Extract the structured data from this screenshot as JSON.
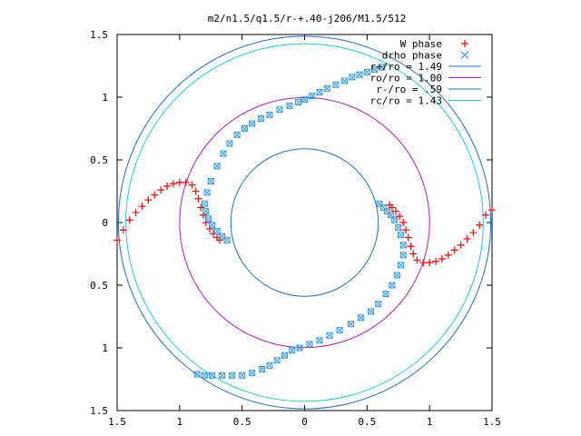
{
  "chart_data": {
    "type": "scatter",
    "title": "m2/n1.5/q1.5/r-+.40-j206/M1.5/512",
    "xlim": [
      -1.5,
      1.5
    ],
    "ylim": [
      -1.5,
      1.5
    ],
    "x_tick_values": [
      -1.5,
      -1,
      -0.5,
      0,
      0.5,
      1,
      1.5
    ],
    "x_tick_labels": [
      "1.5",
      "1",
      "0.5",
      "0",
      "0.5",
      "1",
      "1.5"
    ],
    "y_tick_values": [
      1.5,
      1,
      0.5,
      0,
      -0.5,
      -1,
      -1.5
    ],
    "y_tick_labels": [
      "1.5",
      "1",
      "0.5",
      "0",
      "0.5",
      "1",
      "1.5"
    ],
    "grid": false,
    "legend_position": "top-right",
    "series": [
      {
        "name": "W phase",
        "marker": "plus",
        "color": "#ff0000",
        "points": [
          [
            -1.5,
            -0.14
          ],
          [
            -1.45,
            -0.06
          ],
          [
            -1.4,
            0.02
          ],
          [
            -1.35,
            0.08
          ],
          [
            -1.3,
            0.13
          ],
          [
            -1.25,
            0.18
          ],
          [
            -1.2,
            0.22
          ],
          [
            -1.15,
            0.26
          ],
          [
            -1.1,
            0.29
          ],
          [
            -1.05,
            0.31
          ],
          [
            -1.0,
            0.32
          ],
          [
            -0.95,
            0.32
          ],
          [
            -0.9,
            0.3
          ],
          [
            -0.87,
            0.25
          ],
          [
            -0.85,
            0.19
          ],
          [
            -0.83,
            0.12
          ],
          [
            -0.81,
            0.06
          ],
          [
            -0.79,
            0.0
          ],
          [
            -0.76,
            -0.05
          ],
          [
            -0.73,
            -0.09
          ],
          [
            -0.7,
            -0.12
          ],
          [
            -0.68,
            -0.14
          ],
          [
            0.68,
            0.14
          ],
          [
            0.7,
            0.12
          ],
          [
            0.73,
            0.09
          ],
          [
            0.76,
            0.05
          ],
          [
            0.79,
            0.0
          ],
          [
            0.81,
            -0.06
          ],
          [
            0.83,
            -0.12
          ],
          [
            0.85,
            -0.19
          ],
          [
            0.87,
            -0.25
          ],
          [
            0.9,
            -0.3
          ],
          [
            0.95,
            -0.32
          ],
          [
            1.0,
            -0.32
          ],
          [
            1.05,
            -0.31
          ],
          [
            1.1,
            -0.29
          ],
          [
            1.15,
            -0.26
          ],
          [
            1.2,
            -0.22
          ],
          [
            1.25,
            -0.18
          ],
          [
            1.3,
            -0.13
          ],
          [
            1.35,
            -0.08
          ],
          [
            1.4,
            -0.02
          ],
          [
            1.45,
            0.06
          ],
          [
            1.5,
            0.1
          ]
        ]
      },
      {
        "name": "drho phase",
        "marker": "cross-square",
        "color": "#3399ee",
        "points": [
          [
            -0.62,
            -0.14
          ],
          [
            -0.66,
            -0.11
          ],
          [
            -0.7,
            -0.07
          ],
          [
            -0.74,
            -0.02
          ],
          [
            -0.77,
            0.03
          ],
          [
            -0.79,
            0.09
          ],
          [
            -0.8,
            0.15
          ],
          [
            -0.78,
            0.24
          ],
          [
            -0.75,
            0.33
          ],
          [
            -0.7,
            0.45
          ],
          [
            -0.65,
            0.55
          ],
          [
            -0.6,
            0.63
          ],
          [
            -0.54,
            0.7
          ],
          [
            -0.48,
            0.75
          ],
          [
            -0.42,
            0.79
          ],
          [
            -0.35,
            0.83
          ],
          [
            -0.28,
            0.86
          ],
          [
            -0.2,
            0.9
          ],
          [
            -0.12,
            0.93
          ],
          [
            -0.05,
            0.96
          ],
          [
            0.0,
            0.98
          ],
          [
            0.06,
            1.01
          ],
          [
            0.12,
            1.04
          ],
          [
            0.18,
            1.07
          ],
          [
            0.25,
            1.1
          ],
          [
            0.32,
            1.13
          ],
          [
            0.38,
            1.16
          ],
          [
            0.44,
            1.18
          ],
          [
            0.5,
            1.2
          ],
          [
            0.56,
            1.22
          ],
          [
            0.62,
            1.24
          ],
          [
            0.6,
            0.15
          ],
          [
            0.63,
            0.12
          ],
          [
            0.66,
            0.09
          ],
          [
            0.69,
            0.06
          ],
          [
            0.72,
            0.02
          ],
          [
            0.75,
            -0.04
          ],
          [
            0.77,
            -0.1
          ],
          [
            0.79,
            -0.18
          ],
          [
            0.79,
            -0.26
          ],
          [
            0.77,
            -0.34
          ],
          [
            0.74,
            -0.42
          ],
          [
            0.7,
            -0.5
          ],
          [
            0.65,
            -0.57
          ],
          [
            0.59,
            -0.65
          ],
          [
            0.53,
            -0.71
          ],
          [
            0.45,
            -0.76
          ],
          [
            0.37,
            -0.81
          ],
          [
            0.28,
            -0.86
          ],
          [
            0.2,
            -0.9
          ],
          [
            0.12,
            -0.94
          ],
          [
            0.04,
            -0.97
          ],
          [
            -0.04,
            -1.0
          ],
          [
            -0.1,
            -1.02
          ],
          [
            -0.16,
            -1.06
          ],
          [
            -0.22,
            -1.1
          ],
          [
            -0.28,
            -1.14
          ],
          [
            -0.34,
            -1.17
          ],
          [
            -0.42,
            -1.2
          ],
          [
            -0.5,
            -1.22
          ],
          [
            -0.58,
            -1.22
          ],
          [
            -0.66,
            -1.22
          ],
          [
            -0.74,
            -1.22
          ],
          [
            -0.8,
            -1.22
          ],
          [
            -0.86,
            -1.21
          ]
        ]
      },
      {
        "name": "r+/ro = 1.49",
        "shape": "circle",
        "radius": 1.49,
        "color": "#1f6fbf"
      },
      {
        "name": "ro/ro = 1.00",
        "shape": "circle",
        "radius": 1.0,
        "color": "#aa22bb"
      },
      {
        "name": "r-/ro = .59",
        "shape": "circle",
        "radius": 0.59,
        "color": "#1f6fbf"
      },
      {
        "name": "rc/ro = 1.43",
        "shape": "circle",
        "radius": 1.43,
        "color": "#22cccc"
      }
    ]
  }
}
